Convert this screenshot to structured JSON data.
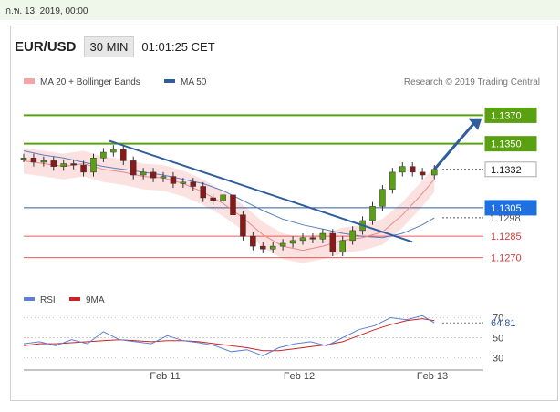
{
  "top_bar": {
    "date": "ก.พ. 13, 2019, 00:00"
  },
  "header": {
    "pair": "EUR/USD",
    "timeframe": "30 MIN",
    "time": "01:01:25 CET"
  },
  "credit": "Research © 2019 Trading Central",
  "colors": {
    "green": "#5aa112",
    "blue": "#2f5d9e",
    "red": "#e65b5b",
    "rsi": "#5b7fd6",
    "ma9": "#cc2222"
  },
  "chart_data": [
    {
      "type": "line",
      "title": "",
      "legend": [
        {
          "name": "MA 20 + Bollinger Bands",
          "color": "#f08080"
        },
        {
          "name": "MA 50",
          "color": "#2f5d9e"
        }
      ],
      "x_ticks": [
        "Feb 11",
        "Feb 12",
        "Feb 13"
      ],
      "ylim": [
        1.1255,
        1.1385
      ],
      "price_levels": [
        {
          "label": "1.1370",
          "value": 1.137,
          "kind": "resistance",
          "color": "#5aa112"
        },
        {
          "label": "1.1350",
          "value": 1.135,
          "kind": "resistance",
          "color": "#5aa112"
        },
        {
          "label": "1.1332",
          "value": 1.1332,
          "kind": "last",
          "color": "#222222"
        },
        {
          "label": "1.1305",
          "value": 1.1305,
          "kind": "pivot",
          "color": "#2f5d9e"
        },
        {
          "label": "1.1298",
          "value": 1.1298,
          "kind": "ma",
          "color": "#666666"
        },
        {
          "label": "1.1285",
          "value": 1.1285,
          "kind": "support",
          "color": "#e65b5b"
        },
        {
          "label": "1.1270",
          "value": 1.127,
          "kind": "support",
          "color": "#e65b5b"
        }
      ],
      "series": [
        {
          "name": "MA 20 + Bollinger Bands",
          "x": [
            0,
            10,
            20,
            30,
            40,
            50,
            60,
            70,
            80,
            90,
            100,
            110,
            120,
            130,
            140,
            150,
            160,
            170,
            180,
            190,
            200,
            206
          ],
          "values": [
            1.1338,
            1.1336,
            1.1334,
            1.1336,
            1.1332,
            1.133,
            1.1327,
            1.1326,
            1.1322,
            1.1316,
            1.1308,
            1.1298,
            1.1286,
            1.1278,
            1.1275,
            1.1278,
            1.1282,
            1.1284,
            1.1288,
            1.13,
            1.1315,
            1.1325
          ]
        },
        {
          "name": "MA 50",
          "x": [
            0,
            10,
            20,
            30,
            40,
            50,
            60,
            70,
            80,
            90,
            100,
            110,
            120,
            130,
            140,
            150,
            160,
            170,
            180,
            190,
            200,
            206
          ],
          "values": [
            1.1345,
            1.1342,
            1.134,
            1.1337,
            1.1334,
            1.1332,
            1.133,
            1.1328,
            1.1325,
            1.1322,
            1.1317,
            1.131,
            1.1303,
            1.1297,
            1.1293,
            1.129,
            1.1287,
            1.1285,
            1.1284,
            1.1287,
            1.1293,
            1.1298
          ]
        },
        {
          "name": "Close",
          "x": [
            0,
            5,
            10,
            15,
            20,
            25,
            30,
            35,
            40,
            45,
            50,
            55,
            60,
            65,
            70,
            75,
            80,
            85,
            90,
            95,
            100,
            105,
            110,
            115,
            120,
            125,
            130,
            135,
            140,
            145,
            150,
            155,
            160,
            165,
            170,
            175,
            180,
            185,
            190,
            195,
            200,
            206
          ],
          "values": [
            1.134,
            1.1337,
            1.1338,
            1.1334,
            1.1336,
            1.1335,
            1.133,
            1.134,
            1.1344,
            1.1346,
            1.1338,
            1.1328,
            1.133,
            1.1326,
            1.1327,
            1.1322,
            1.1323,
            1.132,
            1.1312,
            1.131,
            1.1314,
            1.13,
            1.1285,
            1.1278,
            1.1276,
            1.1278,
            1.128,
            1.1282,
            1.1284,
            1.1283,
            1.1287,
            1.1274,
            1.1282,
            1.1289,
            1.1296,
            1.1306,
            1.1318,
            1.133,
            1.1334,
            1.133,
            1.1328,
            1.1332
          ]
        }
      ]
    },
    {
      "type": "line",
      "title": "",
      "legend": [
        {
          "name": "RSI",
          "color": "#5b7fd6"
        },
        {
          "name": "9MA",
          "color": "#cc2222"
        }
      ],
      "ylim": [
        25,
        75
      ],
      "y_ticks": [
        70,
        50,
        30
      ],
      "last_value_label": "64.81",
      "series": [
        {
          "name": "RSI",
          "x": [
            0,
            8,
            16,
            24,
            32,
            40,
            48,
            56,
            64,
            72,
            80,
            88,
            96,
            104,
            112,
            120,
            128,
            136,
            144,
            152,
            160,
            168,
            176,
            184,
            192,
            200,
            206
          ],
          "values": [
            44,
            46,
            42,
            48,
            44,
            56,
            48,
            46,
            44,
            52,
            47,
            45,
            42,
            36,
            38,
            32,
            40,
            44,
            46,
            42,
            50,
            58,
            62,
            70,
            68,
            72,
            64.81
          ]
        },
        {
          "name": "9MA",
          "x": [
            0,
            8,
            16,
            24,
            32,
            40,
            48,
            56,
            64,
            72,
            80,
            88,
            96,
            104,
            112,
            120,
            128,
            136,
            144,
            152,
            160,
            168,
            176,
            184,
            192,
            200,
            206
          ],
          "values": [
            42,
            44,
            44,
            45,
            46,
            47,
            48,
            47,
            46,
            47,
            47,
            46,
            44,
            42,
            40,
            37,
            37,
            39,
            41,
            43,
            46,
            52,
            58,
            63,
            67,
            69,
            67
          ]
        }
      ]
    }
  ]
}
